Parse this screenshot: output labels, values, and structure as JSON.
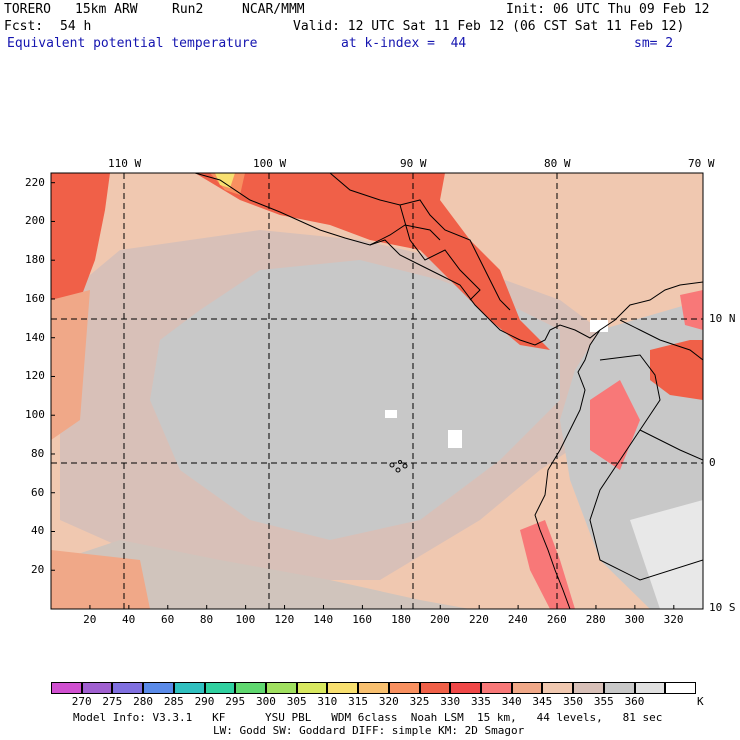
{
  "header": {
    "model": "TORERO",
    "resolution": "15km ARW",
    "run": "Run2",
    "org": "NCAR/MMM",
    "init": "Init: 06 UTC Thu 09 Feb 12",
    "fcst_label": "Fcst:",
    "fcst_value": "54 h",
    "valid": "Valid: 12 UTC Sat 11 Feb 12 (06 CST Sat 11 Feb 12)",
    "field": "Equivalent potential temperature",
    "level": "at k-index =  44",
    "smoothing": "sm= 2"
  },
  "map": {
    "lon_labels": [
      "110 W",
      "100 W",
      "90 W",
      "80 W",
      "70 W"
    ],
    "lat_labels": [
      "10 N",
      "0",
      "10 S"
    ],
    "y_ticks": [
      "220",
      "200",
      "180",
      "160",
      "140",
      "120",
      "100",
      "80",
      "60",
      "40",
      "20"
    ],
    "x_ticks": [
      "20",
      "40",
      "60",
      "80",
      "100",
      "120",
      "140",
      "160",
      "180",
      "200",
      "220",
      "240",
      "260",
      "280",
      "300",
      "320"
    ]
  },
  "colorbar": {
    "unit": "K",
    "labels": [
      "270",
      "275",
      "280",
      "285",
      "290",
      "295",
      "300",
      "305",
      "310",
      "315",
      "320",
      "325",
      "330",
      "335",
      "340",
      "345",
      "350",
      "355",
      "360"
    ],
    "colors": [
      "#d050d0",
      "#a060d0",
      "#8070e0",
      "#5a8ae8",
      "#30c0c0",
      "#30d0a0",
      "#60d870",
      "#a0e060",
      "#d8e860",
      "#f8e070",
      "#f8c070",
      "#f89060",
      "#f06048",
      "#f04848",
      "#f87878",
      "#f0a888",
      "#f0c8b0",
      "#d8c0b8",
      "#c8c8c8",
      "#e0e0e0",
      "#ffffff"
    ]
  },
  "footer": {
    "line1": "Model Info: V3.3.1   KF      YSU PBL   WDM 6class  Noah LSM  15 km,   44 levels,   81 sec",
    "line2": "LW: Godd SW: Goddard DIFF: simple KM: 2D Smagor"
  }
}
